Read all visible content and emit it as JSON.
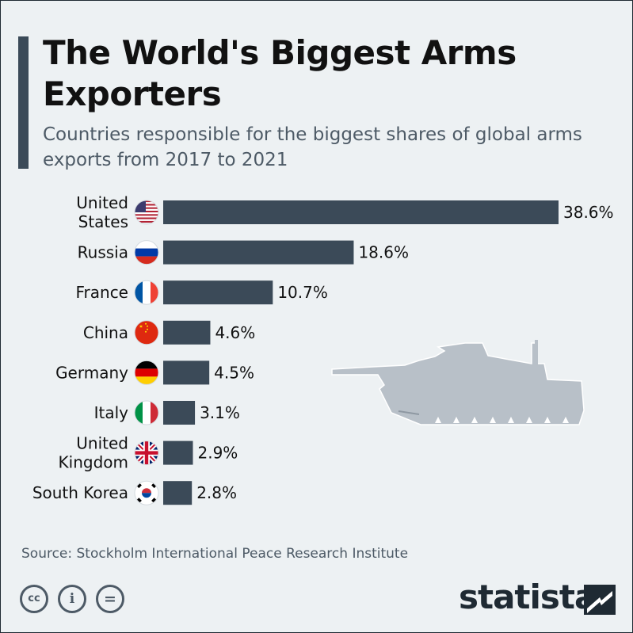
{
  "header": {
    "title": "The World's Biggest Arms Exporters",
    "subtitle": "Countries responsible for the biggest shares of global arms exports from 2017 to 2021"
  },
  "chart_data": {
    "type": "bar",
    "orientation": "horizontal",
    "title": "The World's Biggest Arms Exporters",
    "subtitle": "Countries responsible for the biggest shares of global arms exports from 2017 to 2021",
    "categories": [
      [
        "United",
        "States"
      ],
      [
        "Russia"
      ],
      [
        "France"
      ],
      [
        "China"
      ],
      [
        "Germany"
      ],
      [
        "Italy"
      ],
      [
        "United",
        "Kingdom"
      ],
      [
        "South Korea"
      ]
    ],
    "values": [
      38.6,
      18.6,
      10.7,
      4.6,
      4.5,
      3.1,
      2.9,
      2.8
    ],
    "value_labels": [
      "38.6%",
      "18.6%",
      "10.7%",
      "4.6%",
      "4.5%",
      "3.1%",
      "2.9%",
      "2.8%"
    ],
    "flags": [
      "us-flag-icon",
      "russia-flag-icon",
      "france-flag-icon",
      "china-flag-icon",
      "germany-flag-icon",
      "italy-flag-icon",
      "uk-flag-icon",
      "south-korea-flag-icon"
    ],
    "bar_color": "#3b4a58",
    "xlim": [
      0,
      38.6
    ],
    "grid": false,
    "legend": "none"
  },
  "footer": {
    "source": "Source: Stockholm International Peace Research Institute",
    "license_icons": [
      "cc-icon",
      "by-icon",
      "nd-icon"
    ],
    "license_text": [
      "cc",
      "i",
      "="
    ],
    "brand": "statista"
  },
  "decorations": {
    "illustration": "tank-icon",
    "tank_color": "#b8c0c8"
  }
}
